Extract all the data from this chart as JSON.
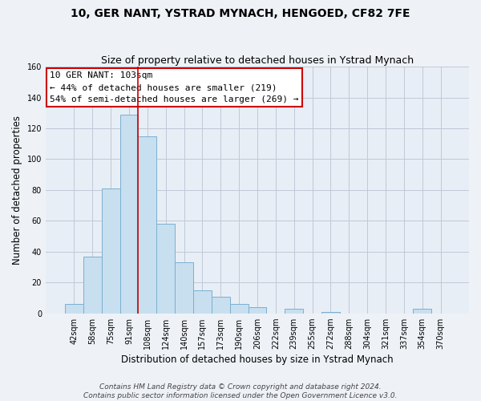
{
  "title": "10, GER NANT, YSTRAD MYNACH, HENGOED, CF82 7FE",
  "subtitle": "Size of property relative to detached houses in Ystrad Mynach",
  "xlabel": "Distribution of detached houses by size in Ystrad Mynach",
  "ylabel": "Number of detached properties",
  "categories": [
    "42sqm",
    "58sqm",
    "75sqm",
    "91sqm",
    "108sqm",
    "124sqm",
    "140sqm",
    "157sqm",
    "173sqm",
    "190sqm",
    "206sqm",
    "222sqm",
    "239sqm",
    "255sqm",
    "272sqm",
    "288sqm",
    "304sqm",
    "321sqm",
    "337sqm",
    "354sqm",
    "370sqm"
  ],
  "values": [
    6,
    37,
    81,
    129,
    115,
    58,
    33,
    15,
    11,
    6,
    4,
    0,
    3,
    0,
    1,
    0,
    0,
    0,
    0,
    3,
    0
  ],
  "bar_color": "#c8dff0",
  "bar_edge_color": "#7ab0d0",
  "vline_x_index": 3,
  "vline_color": "#cc0000",
  "ylim": [
    0,
    160
  ],
  "yticks": [
    0,
    20,
    40,
    60,
    80,
    100,
    120,
    140,
    160
  ],
  "annotation_title": "10 GER NANT: 103sqm",
  "annotation_line1": "← 44% of detached houses are smaller (219)",
  "annotation_line2": "54% of semi-detached houses are larger (269) →",
  "footer_line1": "Contains HM Land Registry data © Crown copyright and database right 2024.",
  "footer_line2": "Contains public sector information licensed under the Open Government Licence v3.0.",
  "background_color": "#eef2f7",
  "plot_background_color": "#e8eef5",
  "grid_color": "#c0c8d8",
  "title_fontsize": 10,
  "subtitle_fontsize": 9,
  "axis_label_fontsize": 8.5,
  "tick_fontsize": 7,
  "annotation_fontsize": 8,
  "footer_fontsize": 6.5
}
